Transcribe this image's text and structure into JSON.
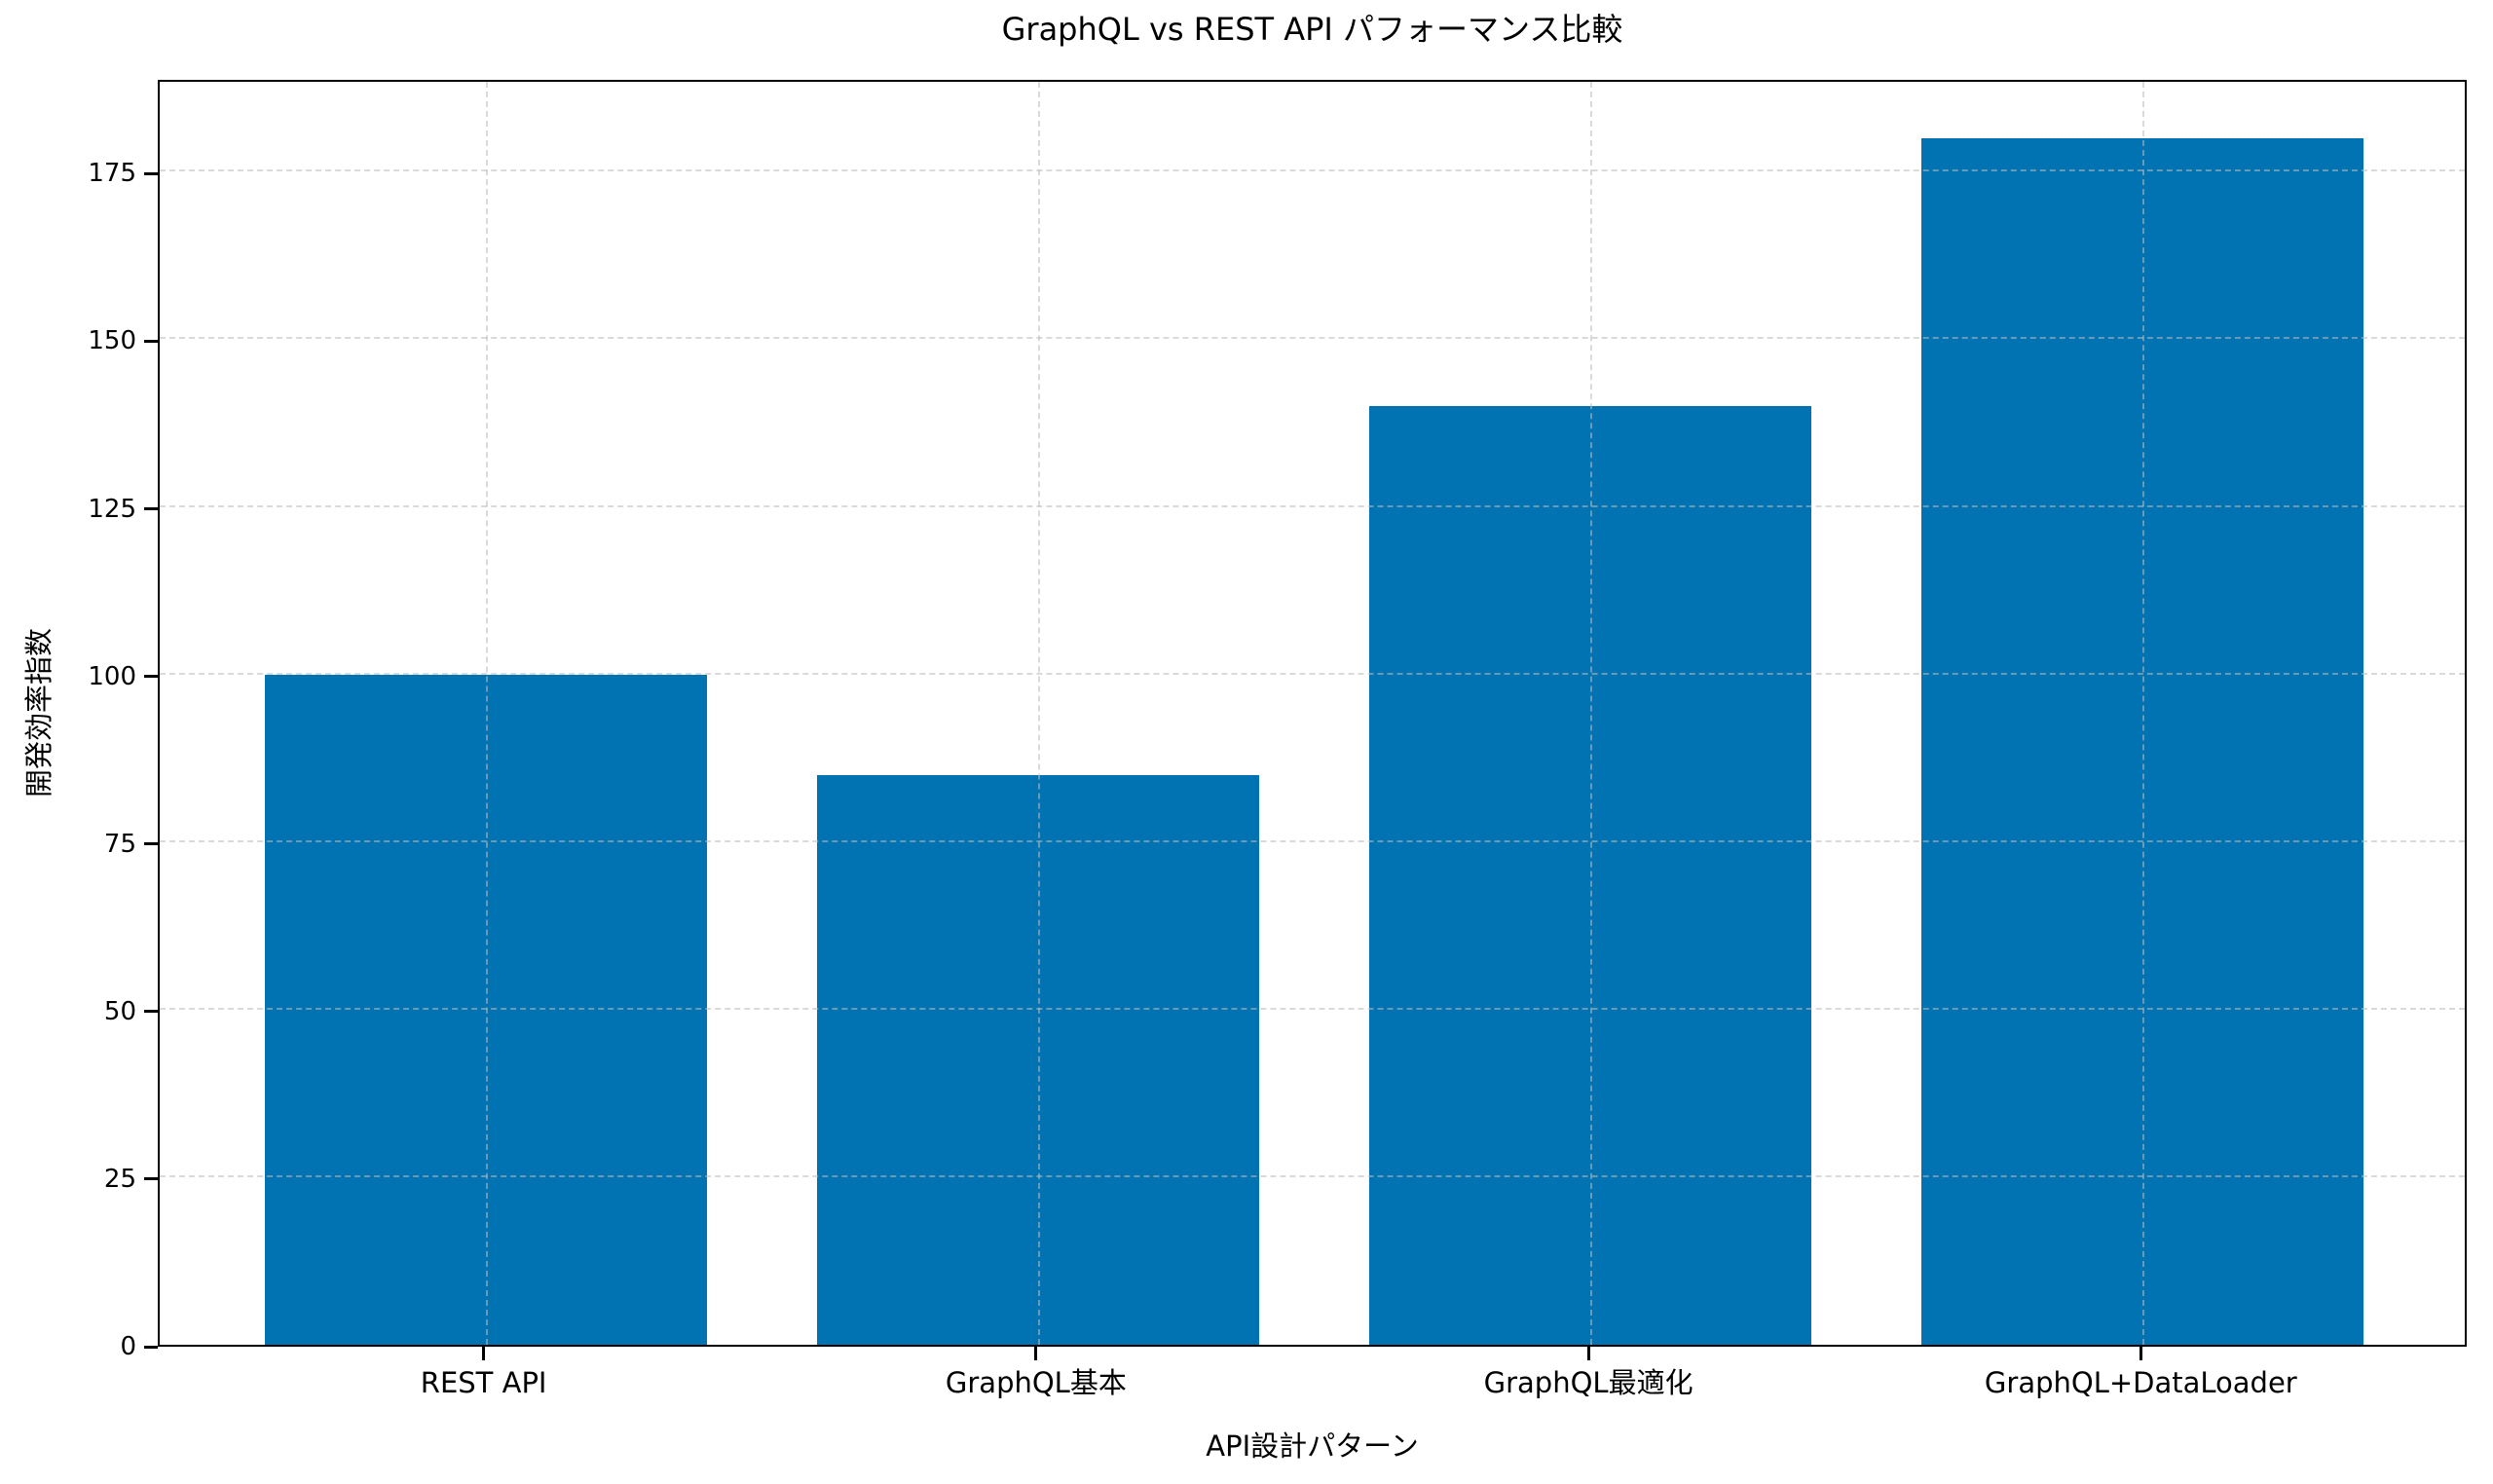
{
  "figure": {
    "background_color": "#ffffff",
    "text_color": "#000000"
  },
  "chart_data": {
    "type": "bar",
    "title": "GraphQL vs REST API パフォーマンス比較",
    "xlabel": "API設計パターン",
    "ylabel": "開発効率指数",
    "categories": [
      "REST API",
      "GraphQL基本",
      "GraphQL最適化",
      "GraphQL+DataLoader"
    ],
    "values": [
      100,
      85,
      140,
      180
    ],
    "ylim": [
      0,
      189
    ],
    "yticks": [
      0,
      25,
      50,
      75,
      100,
      125,
      150,
      175
    ],
    "bar_color": "#0173b2",
    "grid": true,
    "grid_linestyle": "dashed",
    "grid_axes": "both",
    "legend_position": "none"
  }
}
